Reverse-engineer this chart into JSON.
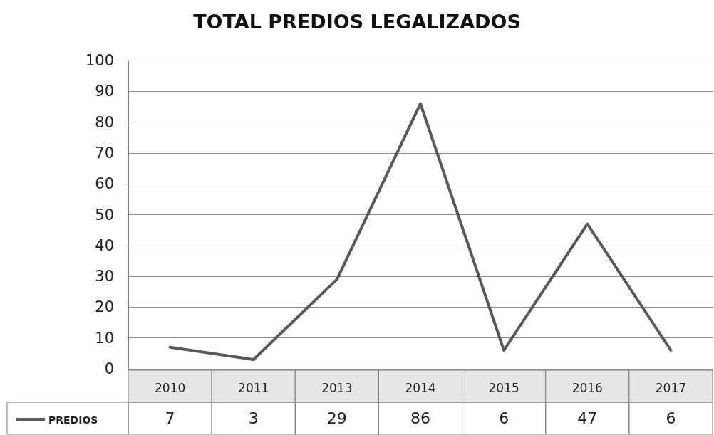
{
  "chart_data": {
    "type": "line",
    "title": "TOTAL PREDIOS LEGALIZADOS",
    "categories": [
      "2010",
      "2011",
      "2013",
      "2014",
      "2015",
      "2016",
      "2017"
    ],
    "series": [
      {
        "name": "PREDIOS",
        "color": "#595959",
        "values": [
          7,
          3,
          29,
          86,
          6,
          47,
          6
        ]
      }
    ],
    "ylim": [
      0,
      100
    ],
    "yticks": [
      0,
      10,
      20,
      30,
      40,
      50,
      60,
      70,
      80,
      90,
      100
    ],
    "grid": "y",
    "legend": "bottom left",
    "data_labels": true,
    "marker": "none",
    "line_style": "solid"
  }
}
